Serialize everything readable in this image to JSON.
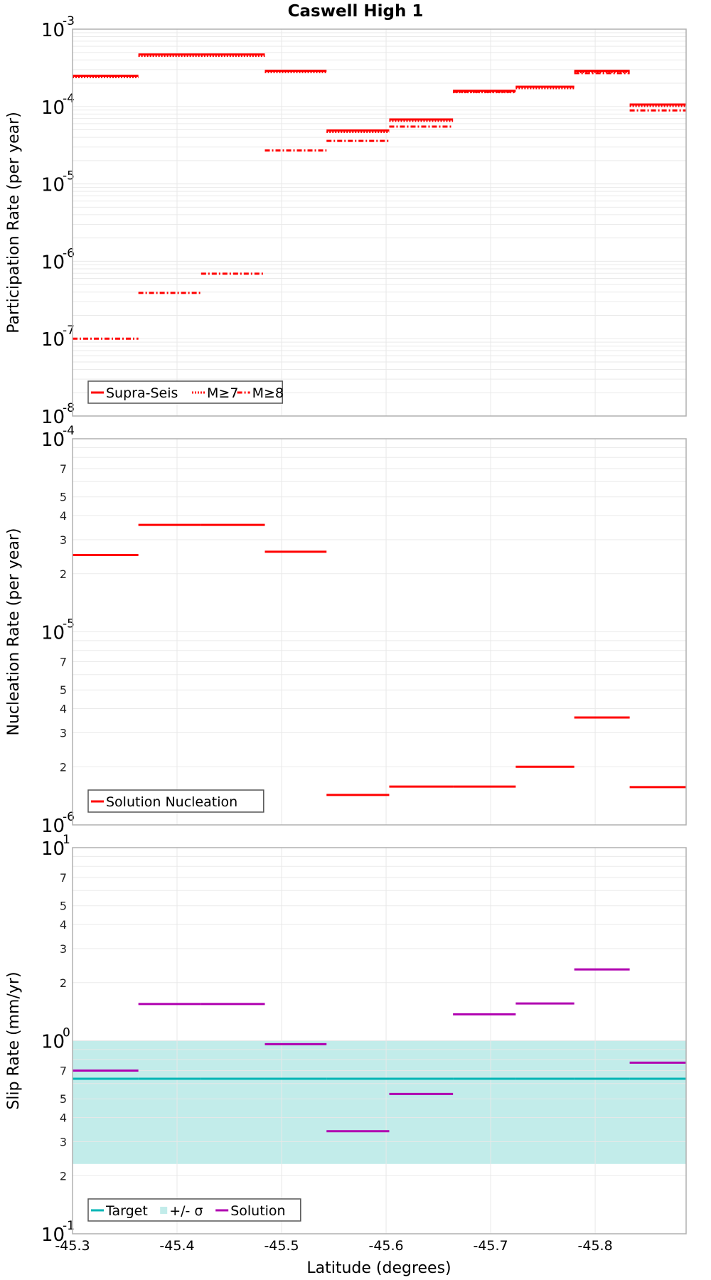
{
  "title": "Caswell High 1",
  "xlabel": "Latitude (degrees)",
  "x_ticks": [
    "-45.3",
    "-45.4",
    "-45.5",
    "-45.6",
    "-45.7",
    "-45.8"
  ],
  "colors": {
    "red": "#ff0000",
    "target": "#00b5b5",
    "band": "#c2ecea",
    "solution": "#b000b0",
    "grid": "#e8e8e8",
    "frame": "#b0b0b0",
    "legend_border": "#555555"
  },
  "chart_data": [
    {
      "type": "line",
      "title": "Caswell High 1",
      "xlabel": "Latitude (degrees)",
      "ylabel": "Participation Rate (per year)",
      "yscale": "log",
      "ylim": [
        1e-08,
        0.001
      ],
      "xlim": [
        -45.3,
        -45.887
      ],
      "y_tick_labels": [
        "10^-3",
        "10^-4",
        "10^-5",
        "10^-6",
        "10^-7",
        "10^-8"
      ],
      "grid": true,
      "legend_position": "lower left",
      "x_edges": [
        -45.3,
        -45.363,
        -45.423,
        -45.484,
        -45.543,
        -45.603,
        -45.664,
        -45.724,
        -45.78,
        -45.833,
        -45.887
      ],
      "series": [
        {
          "name": "Supra-Seis",
          "style": "solid",
          "values": [
            0.00025,
            0.00047,
            0.00047,
            0.00029,
            4.9e-05,
            6.8e-05,
            0.00016,
            0.00018,
            0.00029,
            0.000106
          ]
        },
        {
          "name": "M≥7",
          "style": "dotted",
          "values": [
            0.00025,
            0.00047,
            0.00047,
            0.00029,
            4.9e-05,
            6.8e-05,
            0.00016,
            0.00018,
            0.00029,
            0.000106
          ]
        },
        {
          "name": "M≥8",
          "style": "dashdot",
          "values": [
            1e-07,
            3.9e-07,
            6.9e-07,
            2.7e-05,
            3.6e-05,
            5.5e-05,
            0.000155,
            0.00018,
            0.00027,
            8.9e-05
          ]
        }
      ]
    },
    {
      "type": "line",
      "ylabel": "Nucleation Rate (per year)",
      "yscale": "log",
      "ylim": [
        1e-06,
        0.0001
      ],
      "xlim": [
        -45.3,
        -45.887
      ],
      "y_tick_labels": [
        "10^-4",
        "7",
        "5",
        "4",
        "3",
        "2",
        "10^-5",
        "7",
        "5",
        "4",
        "3",
        "2",
        "10^-6"
      ],
      "grid": true,
      "legend_position": "lower left",
      "x_edges": [
        -45.3,
        -45.363,
        -45.423,
        -45.484,
        -45.543,
        -45.603,
        -45.664,
        -45.724,
        -45.78,
        -45.833,
        -45.887
      ],
      "series": [
        {
          "name": "Solution Nucleation",
          "style": "solid",
          "values": [
            2.5e-05,
            3.58e-05,
            3.58e-05,
            2.6e-05,
            1.43e-06,
            1.58e-06,
            1.58e-06,
            2e-06,
            3.6e-06,
            1.57e-06
          ]
        }
      ]
    },
    {
      "type": "line",
      "ylabel": "Slip Rate (mm/yr)",
      "yscale": "log",
      "ylim": [
        0.1,
        10
      ],
      "xlim": [
        -45.3,
        -45.887
      ],
      "y_tick_labels": [
        "10^1",
        "7",
        "5",
        "4",
        "3",
        "2",
        "10^0",
        "7",
        "5",
        "4",
        "3",
        "2",
        "10^-1"
      ],
      "grid": true,
      "legend_position": "lower left",
      "x_edges": [
        -45.3,
        -45.363,
        -45.423,
        -45.484,
        -45.543,
        -45.603,
        -45.664,
        -45.724,
        -45.78,
        -45.833,
        -45.887
      ],
      "series": [
        {
          "name": "Target",
          "style": "solid",
          "values": [
            0.635,
            0.635,
            0.635,
            0.635,
            0.635,
            0.635,
            0.635,
            0.635,
            0.635,
            0.635
          ]
        },
        {
          "name": "+/- σ",
          "style": "band",
          "lower": 0.23,
          "upper": 1.0
        },
        {
          "name": "Solution",
          "style": "solid",
          "values": [
            0.7,
            1.55,
            1.55,
            0.96,
            0.34,
            0.53,
            1.37,
            1.56,
            2.34,
            0.77
          ]
        }
      ]
    }
  ],
  "panels": [
    {
      "ylabel": "Participation Rate (per year)",
      "legend": [
        {
          "label": "Supra-Seis",
          "style": "solid",
          "color": "#ff0000"
        },
        {
          "label": "M≥7",
          "style": "dotted",
          "color": "#ff0000"
        },
        {
          "label": "M≥8",
          "style": "dashdot",
          "color": "#ff0000"
        }
      ]
    },
    {
      "ylabel": "Nucleation Rate (per year)",
      "legend": [
        {
          "label": "Solution Nucleation",
          "style": "solid",
          "color": "#ff0000"
        }
      ]
    },
    {
      "ylabel": "Slip Rate (mm/yr)",
      "legend": [
        {
          "label": "Target",
          "style": "solid",
          "color": "#00b5b5"
        },
        {
          "label": "+/- σ",
          "style": "band",
          "color": "#c2ecea"
        },
        {
          "label": "Solution",
          "style": "solid",
          "color": "#b000b0"
        }
      ]
    }
  ]
}
